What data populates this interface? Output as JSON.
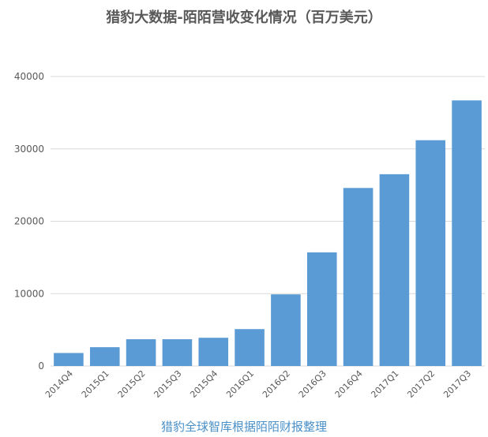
{
  "chart_data": {
    "type": "bar",
    "title": "猎豹大数据-陌陌营收变化情况（百万美元）",
    "source": "猎豹全球智库根据陌陌财报整理",
    "categories": [
      "2014Q4",
      "2015Q1",
      "2015Q2",
      "2015Q3",
      "2015Q4",
      "2016Q1",
      "2016Q2",
      "2016Q3",
      "2016Q4",
      "2017Q1",
      "2017Q2",
      "2017Q3"
    ],
    "values": [
      1800,
      2600,
      3700,
      3700,
      3900,
      5100,
      9900,
      15700,
      24600,
      26500,
      31200,
      36700
    ],
    "ylim": [
      0,
      40000
    ],
    "yticks": [
      0,
      10000,
      20000,
      30000,
      40000
    ],
    "grid": true,
    "bar_color": "#5b9bd5",
    "grid_color": "#d9d9d9"
  }
}
